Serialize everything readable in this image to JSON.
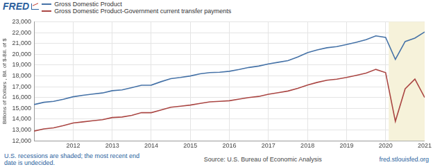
{
  "chart_data": {
    "type": "line",
    "logo": "FRED",
    "y_label": "Billions of Dollars , Bil. of $-Bil. of $",
    "x": [
      2011,
      2011.25,
      2011.5,
      2011.75,
      2012,
      2012.25,
      2012.5,
      2012.75,
      2013,
      2013.25,
      2013.5,
      2013.75,
      2014,
      2014.25,
      2014.5,
      2014.75,
      2015,
      2015.25,
      2015.5,
      2015.75,
      2016,
      2016.25,
      2016.5,
      2016.75,
      2017,
      2017.25,
      2017.5,
      2017.75,
      2018,
      2018.25,
      2018.5,
      2018.75,
      2019,
      2019.25,
      2019.5,
      2019.75,
      2020,
      2020.25,
      2020.5,
      2020.75,
      2021
    ],
    "series": [
      {
        "name": "Gross Domestic Product",
        "color": "#4572a7",
        "values": [
          15351,
          15558,
          15648,
          15842,
          16069,
          16207,
          16319,
          16420,
          16629,
          16700,
          16912,
          17133,
          17144,
          17463,
          17743,
          17852,
          17992,
          18194,
          18307,
          18333,
          18425,
          18589,
          18778,
          18906,
          19103,
          19254,
          19406,
          19749,
          20150,
          20400,
          20600,
          20700,
          20900,
          21100,
          21350,
          21700,
          21561,
          19520,
          21170,
          21494,
          22061
        ]
      },
      {
        "name": "Gross Domestic Product-Government current transfer payments",
        "color": "#aa4643",
        "values": [
          12900,
          13100,
          13200,
          13400,
          13650,
          13750,
          13850,
          13950,
          14150,
          14200,
          14350,
          14600,
          14600,
          14850,
          15100,
          15200,
          15300,
          15450,
          15600,
          15650,
          15700,
          15850,
          16000,
          16100,
          16300,
          16450,
          16600,
          16850,
          17150,
          17400,
          17600,
          17700,
          17850,
          18050,
          18250,
          18600,
          18300,
          13800,
          16800,
          17700,
          16000
        ]
      }
    ],
    "xlim": [
      2011,
      2021
    ],
    "xticks": [
      2012,
      2013,
      2014,
      2015,
      2016,
      2017,
      2018,
      2019,
      2020,
      2021
    ],
    "ylim": [
      12000,
      23000
    ],
    "yticks": [
      {
        "value": 12000,
        "label": "12,000"
      },
      {
        "value": 13000,
        "label": "13,000"
      },
      {
        "value": 14000,
        "label": "14,000"
      },
      {
        "value": 15000,
        "label": "15,000"
      },
      {
        "value": 16000,
        "label": "16,000"
      },
      {
        "value": 17000,
        "label": "17,000"
      },
      {
        "value": 18000,
        "label": "18,000"
      },
      {
        "value": 19000,
        "label": "19,000"
      },
      {
        "value": 20000,
        "label": "20,000"
      },
      {
        "value": 21000,
        "label": "21,000"
      },
      {
        "value": 22000,
        "label": "22,000"
      },
      {
        "value": 23000,
        "label": "23,000"
      }
    ],
    "recession": {
      "start": 2020.08,
      "end": 2021
    },
    "grid": true,
    "legend": "top-left",
    "note": "U.S. recessions are shaded; the most recent end date is undecided.",
    "source": "Source: U.S. Bureau of Economic Analysis",
    "url": "fred.stlouisfed.org"
  }
}
